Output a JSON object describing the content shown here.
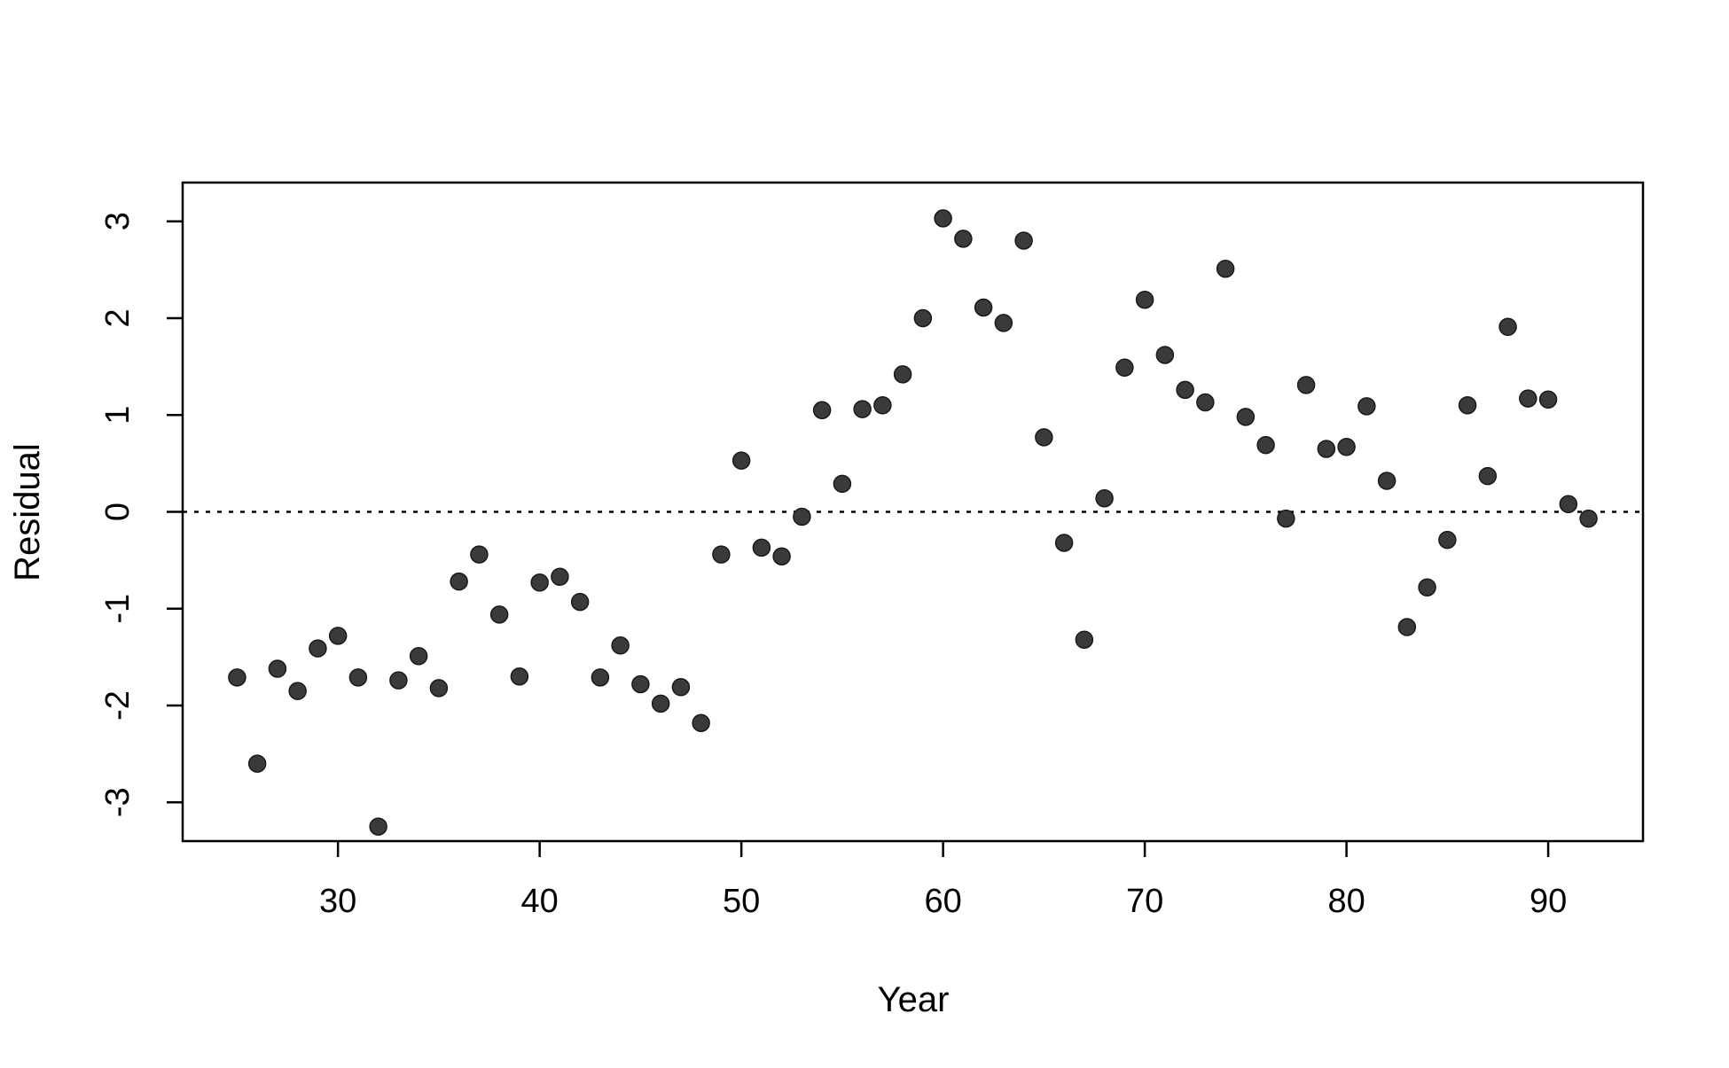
{
  "chart_data": {
    "type": "scatter",
    "title": "",
    "xlabel": "Year",
    "ylabel": "Residual",
    "xlim": [
      22.3,
      94.7
    ],
    "ylim": [
      -3.4,
      3.4
    ],
    "xticks": [
      30,
      40,
      50,
      60,
      70,
      80,
      90
    ],
    "yticks": [
      -3,
      -2,
      -1,
      0,
      1,
      2,
      3
    ],
    "xtick_labels": [
      "30",
      "40",
      "50",
      "60",
      "70",
      "80",
      "90"
    ],
    "ytick_labels": [
      "-3",
      "-2",
      "-1",
      "0",
      "1",
      "2",
      "3"
    ],
    "reference_line": {
      "y": 0,
      "style": "dotted"
    },
    "grid": false,
    "legend": "none",
    "point_color": "#3a3a3a",
    "series": [
      {
        "x": [
          25,
          26,
          27,
          28,
          29,
          30,
          31,
          32,
          33,
          34,
          35,
          36,
          37,
          38,
          39,
          40,
          41,
          42,
          43,
          44,
          45,
          46,
          47,
          48,
          49,
          50,
          51,
          52,
          53,
          54,
          55,
          56,
          57,
          58,
          59,
          60,
          61,
          62,
          63,
          64,
          65,
          66,
          67,
          68,
          69,
          70,
          71,
          72,
          73,
          74,
          75,
          76,
          77,
          78,
          79,
          80,
          81,
          82,
          83,
          84,
          85,
          86,
          87,
          88,
          89,
          90,
          91,
          92
        ],
        "y": [
          -1.71,
          -2.6,
          -1.62,
          -1.85,
          -1.41,
          -1.28,
          -1.71,
          -3.25,
          -1.74,
          -1.49,
          -1.82,
          -0.72,
          -0.44,
          -1.06,
          -1.7,
          -0.73,
          -0.67,
          -0.93,
          -1.71,
          -1.38,
          -1.78,
          -1.98,
          -1.81,
          -2.18,
          -0.44,
          0.53,
          -0.37,
          -0.46,
          -0.05,
          1.05,
          0.29,
          1.06,
          1.1,
          1.42,
          2.0,
          3.03,
          2.82,
          2.11,
          1.95,
          2.8,
          0.77,
          -0.32,
          -1.32,
          0.14,
          1.49,
          2.19,
          1.62,
          1.26,
          1.13,
          2.51,
          0.98,
          0.69,
          -0.07,
          1.31,
          0.65,
          0.67,
          1.09,
          0.32,
          -1.19,
          -0.78,
          -0.29,
          1.1,
          0.37,
          1.91,
          1.17,
          1.16,
          0.08,
          -0.07
        ]
      }
    ]
  }
}
